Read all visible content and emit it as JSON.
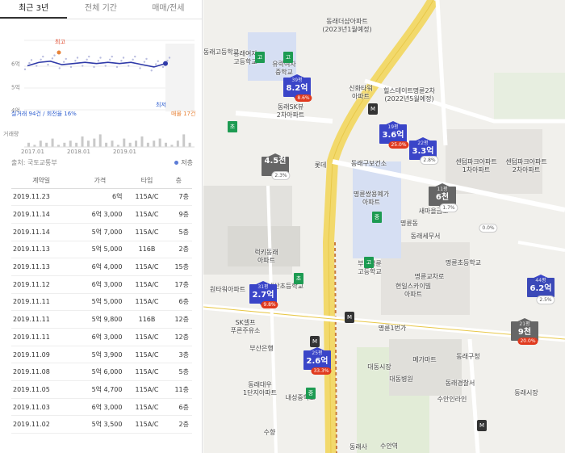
{
  "tabs": [
    "최근 3년",
    "전체 기간",
    "매매/전세"
  ],
  "chart_data": {
    "type": "line",
    "x": [
      "2017.01",
      "2017.04",
      "2017.07",
      "2017.10",
      "2018.01",
      "2018.04",
      "2018.07",
      "2018.10",
      "2019.01",
      "2019.04",
      "2019.07",
      "2019.10",
      "2019.11"
    ],
    "series": [
      {
        "values": [
          5.9,
          6.05,
          6.1,
          5.95,
          6.0,
          6.05,
          6.0,
          6.05,
          6.0,
          6.05,
          5.95,
          5.85,
          6.0
        ]
      }
    ],
    "y_ticks": [
      "6억",
      "5억",
      "4억"
    ],
    "x_ticks": [
      "2017.01",
      "2018.01",
      "2019.01"
    ],
    "high_label": "최고",
    "low_label": "최저",
    "ylabel": "거래량",
    "ylim": [
      4,
      7
    ]
  },
  "chart_stats": {
    "left": "실거래 94건 / 회전율 16%",
    "right": "매물 17건"
  },
  "source": "출처: 국토교통부",
  "legend_flag": "저층",
  "table": {
    "headers": [
      "계약일",
      "가격",
      "타입",
      "층"
    ],
    "rows": [
      [
        "2019.11.23",
        "6억",
        "115A/C",
        "7층"
      ],
      [
        "2019.11.14",
        "6억 3,000",
        "115A/C",
        "9층"
      ],
      [
        "2019.11.14",
        "5억 7,000",
        "115A/C",
        "5층"
      ],
      [
        "2019.11.13",
        "5억 5,000",
        "116B",
        "2층"
      ],
      [
        "2019.11.13",
        "6억 4,000",
        "115A/C",
        "15층"
      ],
      [
        "2019.11.12",
        "6억 3,000",
        "115A/C",
        "17층"
      ],
      [
        "2019.11.11",
        "5억 5,000",
        "115A/C",
        "6층"
      ],
      [
        "2019.11.11",
        "5억 9,800",
        "116B",
        "12층"
      ],
      [
        "2019.11.11",
        "6억 3,000",
        "115A/C",
        "12층"
      ],
      [
        "2019.11.09",
        "5억 3,900",
        "115A/C",
        "3층"
      ],
      [
        "2019.11.08",
        "5억 6,000",
        "115A/C",
        "5층"
      ],
      [
        "2019.11.05",
        "5억 4,700",
        "115A/C",
        "11층"
      ],
      [
        "2019.11.03",
        "6억 3,000",
        "115A/C",
        "6층"
      ],
      [
        "2019.11.02",
        "5억 3,500",
        "115A/C",
        "2층"
      ]
    ]
  },
  "map": {
    "markers": [
      {
        "tag": "39평",
        "price": "8.2억",
        "pct": "8.6%",
        "pct_style": "red",
        "color": "blue"
      },
      {
        "tag": "19평",
        "price": "3.6억",
        "pct": "25.0%",
        "pct_style": "red",
        "color": "blue"
      },
      {
        "tag": "22평",
        "price": "3.3억",
        "pct": "2.8%",
        "pct_style": "white",
        "color": "blue"
      },
      {
        "tag": "",
        "price": "4.5천",
        "pct": "2.3%",
        "pct_style": "white",
        "color": "gray"
      },
      {
        "tag": "11평",
        "price": "6천",
        "pct": "1.7%",
        "pct_style": "white",
        "color": "gray"
      },
      {
        "tag": "31평",
        "price": "2.7억",
        "pct": "9.8%",
        "pct_style": "red",
        "color": "blue"
      },
      {
        "tag": "25평",
        "price": "2.6억",
        "pct": "33.3%",
        "pct_style": "red",
        "color": "blue"
      },
      {
        "tag": "44평",
        "price": "6.2억",
        "pct": "2.5%",
        "pct_style": "white",
        "color": "navy"
      },
      {
        "tag": "21평",
        "price": "9천",
        "pct": "20.0%",
        "pct_style": "red",
        "color": "gray"
      }
    ],
    "single_pct": "0.0%",
    "labels": [
      "동래더샵아파트\n(2023년1월예정)",
      "힐스테이트명륜2차\n(2022년5월예정)",
      "신화타워\n아파트",
      "동래구보건소",
      "명륜쌍용예가\n아파트",
      "새마을금고",
      "명륜동",
      "동래세무서",
      "명륜초등학교",
      "부산명륜\n고등학교",
      "현일스카이빌\n아파트",
      "명륜1번가",
      "대동병원",
      "동래구청",
      "동래시장",
      "대동시장",
      "수안인라인",
      "동래경찰서",
      "동래여자\n고등학교",
      "유락여자\n중학교",
      "동래SK뷰\n2차아파트",
      "롯데",
      "럭키동래\n아파트",
      "내산초등학교",
      "원타워아파트",
      "SK셀프\n푸른주유소",
      "부산은행",
      "동래대우\n1단지아파트",
      "내성중학교",
      "메가마트",
      "센텀파크아파트\n1차아파트",
      "센텀파크아파트\n2차아파트",
      "동래고등학교",
      "수안역",
      "수향",
      "명륜교차로",
      "동래사"
    ]
  }
}
